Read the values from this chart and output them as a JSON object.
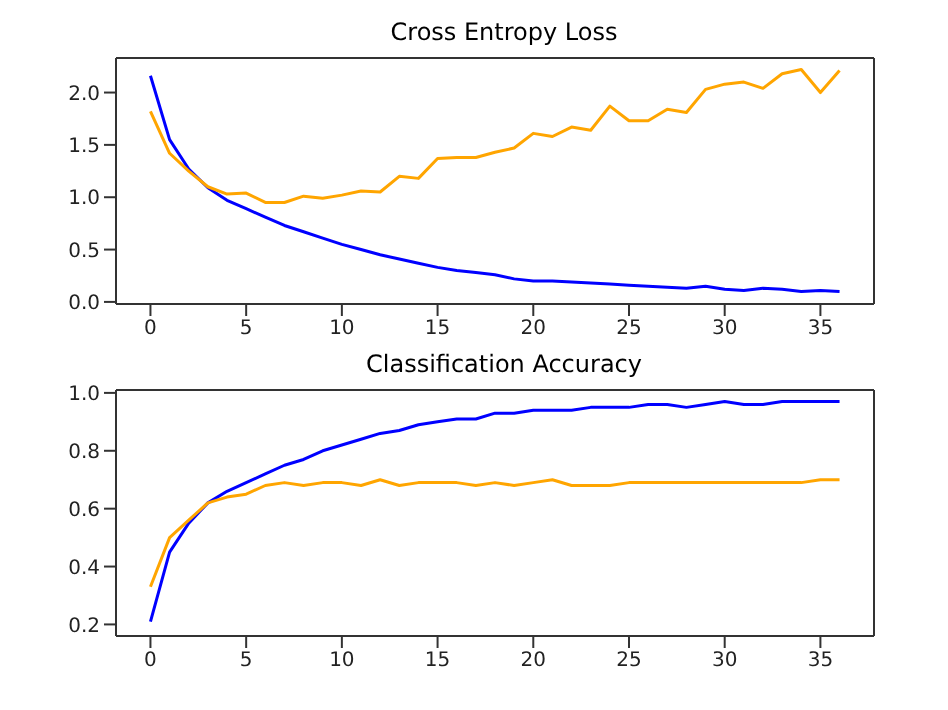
{
  "chart_data": [
    {
      "type": "line",
      "title": "Cross Entropy Loss",
      "x": [
        0,
        1,
        2,
        3,
        4,
        5,
        6,
        7,
        8,
        9,
        10,
        11,
        12,
        13,
        14,
        15,
        16,
        17,
        18,
        19,
        20,
        21,
        22,
        23,
        24,
        25,
        26,
        27,
        28,
        29,
        30,
        31,
        32,
        33,
        34,
        35,
        36
      ],
      "xlim": [
        -1.8,
        37.8
      ],
      "xticks": [
        0,
        5,
        10,
        15,
        20,
        25,
        30,
        35
      ],
      "ylim": [
        -0.02,
        2.33
      ],
      "yticks": [
        {
          "value": 0,
          "label": "0.0"
        },
        {
          "value": 0.5,
          "label": "0.5"
        },
        {
          "value": 1,
          "label": "1.0"
        },
        {
          "value": 1.5,
          "label": "1.5"
        },
        {
          "value": 2,
          "label": "2.0"
        }
      ],
      "grid": false,
      "legend": false,
      "marker": "none",
      "line_style": "solid",
      "series": [
        {
          "color": "#0000ff",
          "values": [
            2.16,
            1.55,
            1.27,
            1.09,
            0.97,
            0.89,
            0.81,
            0.73,
            0.67,
            0.61,
            0.55,
            0.5,
            0.45,
            0.41,
            0.37,
            0.33,
            0.3,
            0.28,
            0.26,
            0.22,
            0.2,
            0.2,
            0.19,
            0.18,
            0.17,
            0.16,
            0.15,
            0.14,
            0.13,
            0.15,
            0.12,
            0.11,
            0.13,
            0.12,
            0.1,
            0.11,
            0.1
          ]
        },
        {
          "color": "#ffa500",
          "values": [
            1.82,
            1.42,
            1.25,
            1.1,
            1.03,
            1.04,
            0.95,
            0.95,
            1.01,
            0.99,
            1.02,
            1.06,
            1.05,
            1.2,
            1.18,
            1.37,
            1.38,
            1.38,
            1.43,
            1.47,
            1.61,
            1.58,
            1.67,
            1.64,
            1.87,
            1.73,
            1.73,
            1.84,
            1.81,
            2.03,
            2.08,
            2.1,
            2.04,
            2.18,
            2.22,
            2.0,
            2.21
          ]
        }
      ]
    },
    {
      "type": "line",
      "title": "Classification Accuracy",
      "x": [
        0,
        1,
        2,
        3,
        4,
        5,
        6,
        7,
        8,
        9,
        10,
        11,
        12,
        13,
        14,
        15,
        16,
        17,
        18,
        19,
        20,
        21,
        22,
        23,
        24,
        25,
        26,
        27,
        28,
        29,
        30,
        31,
        32,
        33,
        34,
        35,
        36
      ],
      "xlim": [
        -1.8,
        37.8
      ],
      "xticks": [
        0,
        5,
        10,
        15,
        20,
        25,
        30,
        35
      ],
      "ylim": [
        0.16,
        1.01
      ],
      "yticks": [
        {
          "value": 0.2,
          "label": "0.2"
        },
        {
          "value": 0.4,
          "label": "0.4"
        },
        {
          "value": 0.6,
          "label": "0.6"
        },
        {
          "value": 0.8,
          "label": "0.8"
        },
        {
          "value": 1,
          "label": "1.0"
        }
      ],
      "grid": false,
      "legend": false,
      "marker": "none",
      "line_style": "solid",
      "series": [
        {
          "color": "#0000ff",
          "values": [
            0.21,
            0.45,
            0.55,
            0.62,
            0.66,
            0.69,
            0.72,
            0.75,
            0.77,
            0.8,
            0.82,
            0.84,
            0.86,
            0.87,
            0.89,
            0.9,
            0.91,
            0.91,
            0.93,
            0.93,
            0.94,
            0.94,
            0.94,
            0.95,
            0.95,
            0.95,
            0.96,
            0.96,
            0.95,
            0.96,
            0.97,
            0.96,
            0.96,
            0.97,
            0.97,
            0.97,
            0.97
          ]
        },
        {
          "color": "#ffa500",
          "values": [
            0.33,
            0.5,
            0.56,
            0.62,
            0.64,
            0.65,
            0.68,
            0.69,
            0.68,
            0.69,
            0.69,
            0.68,
            0.7,
            0.68,
            0.69,
            0.69,
            0.69,
            0.68,
            0.69,
            0.68,
            0.69,
            0.7,
            0.68,
            0.68,
            0.68,
            0.69,
            0.69,
            0.69,
            0.69,
            0.69,
            0.69,
            0.69,
            0.69,
            0.69,
            0.69,
            0.7,
            0.7
          ]
        }
      ]
    }
  ]
}
